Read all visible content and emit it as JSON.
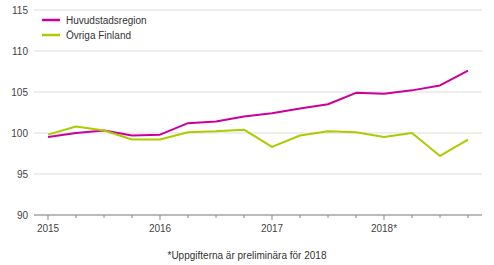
{
  "chart_data": {
    "type": "line",
    "categories": [
      "2015",
      null,
      null,
      null,
      "2016",
      null,
      null,
      null,
      "2017",
      null,
      null,
      null,
      "2018*",
      null,
      null,
      null
    ],
    "series": [
      {
        "name": "Huvudstadsregion",
        "color": "#cc0099",
        "values": [
          99.5,
          100.0,
          100.3,
          99.7,
          99.8,
          101.2,
          101.4,
          102.0,
          102.4,
          103.0,
          103.5,
          104.9,
          104.8,
          105.2,
          105.8,
          107.6
        ]
      },
      {
        "name": "Övriga Finland",
        "color": "#aacc00",
        "values": [
          99.8,
          100.8,
          100.3,
          99.2,
          99.2,
          100.1,
          100.2,
          100.4,
          98.3,
          99.7,
          100.2,
          100.1,
          99.5,
          100.0,
          97.2,
          99.2
        ]
      }
    ],
    "ylim": [
      90,
      115
    ],
    "yticks": [
      90,
      95,
      100,
      105,
      110,
      115
    ],
    "grid": true,
    "legend": "upper-left",
    "annotations": [
      "*Uppgifterna är preliminära för 2018"
    ]
  }
}
